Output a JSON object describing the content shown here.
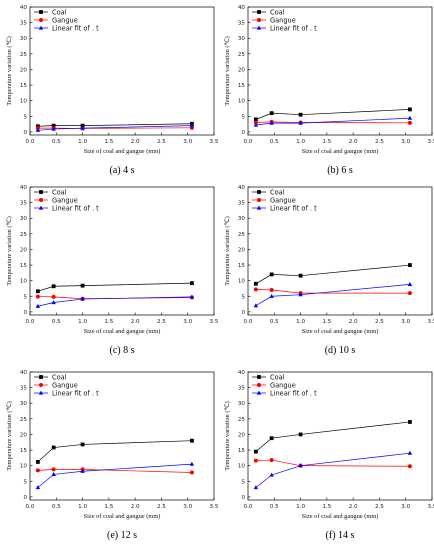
{
  "chart_data": [
    {
      "type": "line",
      "caption": "(a) 4 s",
      "xlabel": "Size of coal and gangue (mm)",
      "ylabel": "Temperature variation (℃)",
      "xlim": [
        0,
        3.5
      ],
      "ylim": [
        -1,
        40
      ],
      "xticks": [
        "0.0",
        "0.5",
        "1.0",
        "1.5",
        "2.0",
        "2.5",
        "3.0",
        "3.5"
      ],
      "yticks": [
        "0",
        "5",
        "10",
        "15",
        "20",
        "25",
        "30",
        "35",
        "40"
      ],
      "x": [
        0.15,
        0.45,
        1.0,
        3.08
      ],
      "legend_position": "top-left",
      "series": [
        {
          "name": "Coal",
          "color": "#000000",
          "marker": "square",
          "values": [
            1.8,
            2.0,
            2.0,
            2.6
          ]
        },
        {
          "name": "Gangue",
          "color": "#ff0000",
          "marker": "circle",
          "values": [
            1.2,
            1.2,
            1.1,
            1.3
          ]
        },
        {
          "name": "Linear fit of . t",
          "color": "#0000ff",
          "marker": "triangle",
          "values": [
            0.5,
            0.9,
            1.2,
            2.0
          ]
        }
      ]
    },
    {
      "type": "line",
      "caption": "(b) 6 s",
      "xlabel": "Size of coal and gangue (mm)",
      "ylabel": "Temperature variation (℃)",
      "xlim": [
        0,
        3.5
      ],
      "ylim": [
        -1,
        40
      ],
      "xticks": [
        "0.0",
        "0.5",
        "1.0",
        "1.5",
        "2.0",
        "2.5",
        "3.0",
        "3.5"
      ],
      "yticks": [
        "0",
        "5",
        "10",
        "15",
        "20",
        "25",
        "30",
        "35",
        "40"
      ],
      "x": [
        0.15,
        0.45,
        1.0,
        3.08
      ],
      "legend_position": "top-left",
      "series": [
        {
          "name": "Coal",
          "color": "#000000",
          "marker": "square",
          "values": [
            4.0,
            6.0,
            5.5,
            7.2
          ]
        },
        {
          "name": "Gangue",
          "color": "#ff0000",
          "marker": "circle",
          "values": [
            3.0,
            3.2,
            3.0,
            2.9
          ]
        },
        {
          "name": "Linear fit of . t",
          "color": "#0000ff",
          "marker": "triangle",
          "values": [
            2.2,
            2.8,
            2.8,
            4.4
          ]
        }
      ]
    },
    {
      "type": "line",
      "caption": "(c) 8 s",
      "xlabel": "Size of coal and gangue (mm)",
      "ylabel": "Temperature variation (℃)",
      "xlim": [
        0,
        3.5
      ],
      "ylim": [
        -1,
        40
      ],
      "xticks": [
        "0.0",
        "0.5",
        "1.0",
        "1.5",
        "2.0",
        "2.5",
        "3.0",
        "3.5"
      ],
      "yticks": [
        "0",
        "5",
        "10",
        "15",
        "20",
        "25",
        "30",
        "35",
        "40"
      ],
      "x": [
        0.15,
        0.45,
        1.0,
        3.08
      ],
      "legend_position": "top-left",
      "series": [
        {
          "name": "Coal",
          "color": "#000000",
          "marker": "square",
          "values": [
            6.6,
            8.2,
            8.4,
            9.2
          ]
        },
        {
          "name": "Gangue",
          "color": "#ff0000",
          "marker": "circle",
          "values": [
            4.9,
            4.8,
            4.2,
            4.6
          ]
        },
        {
          "name": "Linear fit of . t",
          "color": "#0000ff",
          "marker": "triangle",
          "values": [
            1.8,
            3.0,
            4.1,
            4.8
          ]
        }
      ]
    },
    {
      "type": "line",
      "caption": "(d) 10 s",
      "xlabel": "Size of coal and gangue (mm)",
      "ylabel": "Temperature variation (℃)",
      "xlim": [
        0,
        3.5
      ],
      "ylim": [
        -1,
        40
      ],
      "xticks": [
        "0.0",
        "0.5",
        "1.0",
        "1.5",
        "2.0",
        "2.5",
        "3.0",
        "3.5"
      ],
      "yticks": [
        "0",
        "5",
        "10",
        "15",
        "20",
        "25",
        "30",
        "35",
        "40"
      ],
      "x": [
        0.15,
        0.45,
        1.0,
        3.08
      ],
      "legend_position": "top-left",
      "series": [
        {
          "name": "Coal",
          "color": "#000000",
          "marker": "square",
          "values": [
            9.0,
            12.0,
            11.6,
            15.0
          ]
        },
        {
          "name": "Gangue",
          "color": "#ff0000",
          "marker": "circle",
          "values": [
            7.2,
            7.0,
            6.0,
            6.0
          ]
        },
        {
          "name": "Linear fit of . t",
          "color": "#0000ff",
          "marker": "triangle",
          "values": [
            2.0,
            5.0,
            5.5,
            8.8
          ]
        }
      ]
    },
    {
      "type": "line",
      "caption": "(e) 12 s",
      "xlabel": "Size of coal and gangue (mm)",
      "ylabel": "Temperature variation (℃)",
      "xlim": [
        0,
        3.5
      ],
      "ylim": [
        -1,
        40
      ],
      "xticks": [
        "0.0",
        "0.5",
        "1.0",
        "1.5",
        "2.0",
        "2.5",
        "3.0",
        "3.5"
      ],
      "yticks": [
        "0",
        "5",
        "10",
        "15",
        "20",
        "25",
        "30",
        "35",
        "40"
      ],
      "x": [
        0.15,
        0.45,
        1.0,
        3.08
      ],
      "legend_position": "top-left",
      "series": [
        {
          "name": "Coal",
          "color": "#000000",
          "marker": "square",
          "values": [
            11.2,
            15.8,
            16.8,
            18.0
          ]
        },
        {
          "name": "Gangue",
          "color": "#ff0000",
          "marker": "circle",
          "values": [
            8.5,
            8.8,
            8.8,
            7.8
          ]
        },
        {
          "name": "Linear fit of . t",
          "color": "#0000ff",
          "marker": "triangle",
          "values": [
            3.0,
            7.2,
            8.2,
            10.5
          ]
        }
      ]
    },
    {
      "type": "line",
      "caption": "(f) 14 s",
      "xlabel": "Size of coal and gangue (mm)",
      "ylabel": "Temperature variation (℃)",
      "xlim": [
        0,
        3.5
      ],
      "ylim": [
        -1,
        40
      ],
      "xticks": [
        "0.0",
        "0.5",
        "1.0",
        "1.5",
        "2.0",
        "2.5",
        "3.0",
        "3.5"
      ],
      "yticks": [
        "0",
        "5",
        "10",
        "15",
        "20",
        "25",
        "30",
        "35",
        "40"
      ],
      "x": [
        0.15,
        0.45,
        1.0,
        3.08
      ],
      "legend_position": "top-left",
      "series": [
        {
          "name": "Coal",
          "color": "#000000",
          "marker": "square",
          "values": [
            14.5,
            18.8,
            20.0,
            24.0
          ]
        },
        {
          "name": "Gangue",
          "color": "#ff0000",
          "marker": "circle",
          "values": [
            11.6,
            11.8,
            10.0,
            9.8
          ]
        },
        {
          "name": "Linear fit of . t",
          "color": "#0000ff",
          "marker": "triangle",
          "values": [
            3.0,
            7.0,
            10.0,
            14.0
          ]
        }
      ]
    }
  ]
}
